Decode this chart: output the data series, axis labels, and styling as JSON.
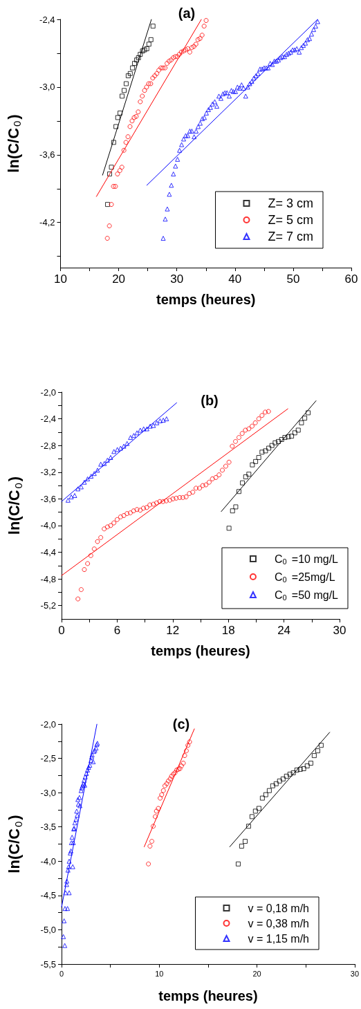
{
  "chart_data": [
    {
      "type": "scatter",
      "title": "(a)",
      "xlabel": "temps (heures)",
      "ylabel": "ln(C/C$_{0}$)",
      "legend": "bottom right",
      "xlim": [
        10,
        60
      ],
      "xticks": [
        10,
        {
          "value": 15,
          "label": null
        },
        20,
        {
          "value": 25,
          "label": null
        },
        30,
        {
          "value": 35,
          "label": null
        },
        40,
        {
          "value": 45,
          "label": null
        },
        50,
        {
          "value": 55,
          "label": null
        },
        60
      ],
      "ylim": [
        -4.6,
        -2.4
      ],
      "yticks": [
        {
          "value": -2.4,
          "label": "-2,4"
        },
        {
          "value": -2.7,
          "label": null
        },
        {
          "value": -3.0,
          "label": "-3,0"
        },
        {
          "value": -3.3,
          "label": null
        },
        {
          "value": -3.6,
          "label": "-3,6"
        },
        {
          "value": -3.9,
          "label": null
        },
        {
          "value": -4.2,
          "label": "-4,2"
        },
        {
          "value": -4.5,
          "label": null
        }
      ],
      "series": [
        {
          "name": "Z= 3 cm",
          "color": "#000000",
          "marker": "square",
          "x": [
            18.09,
            18.44,
            18.75,
            19.14,
            19.53,
            19.84,
            20.23,
            20.59,
            20.94,
            21.29,
            21.64,
            21.99,
            22.38,
            22.73,
            23.09,
            23.4,
            23.71,
            24.1,
            24.45,
            24.84,
            25.2,
            25.55,
            25.9
          ],
          "values": [
            -4.04,
            -3.77,
            -3.71,
            -3.49,
            -3.35,
            -3.27,
            -3.23,
            -3.08,
            -3.03,
            -2.97,
            -2.9,
            -2.88,
            -2.83,
            -2.79,
            -2.76,
            -2.74,
            -2.71,
            -2.68,
            -2.67,
            -2.66,
            -2.62,
            -2.58,
            -2.46
          ]
        },
        {
          "name": "Z= 5 cm",
          "color": "#ff0000",
          "marker": "circle",
          "x": [
            18.05,
            18.4,
            18.75,
            19.1,
            19.45,
            19.8,
            20.2,
            20.55,
            20.9,
            21.25,
            21.6,
            21.95,
            22.3,
            22.66,
            23.01,
            23.36,
            23.71,
            24.06,
            24.45,
            24.8,
            25.16,
            25.51,
            25.86,
            26.21,
            26.56,
            26.91,
            27.27,
            27.62,
            27.97,
            28.32,
            28.67,
            29.02,
            29.38,
            29.73,
            30.08,
            30.43,
            30.78,
            31.17,
            31.52,
            31.88,
            32.23,
            32.58,
            32.93,
            33.28,
            33.63,
            33.98,
            34.34,
            34.69,
            35.04
          ],
          "values": [
            -4.34,
            -4.23,
            -4.04,
            -3.88,
            -3.88,
            -3.77,
            -3.74,
            -3.71,
            -3.56,
            -3.49,
            -3.44,
            -3.35,
            -3.3,
            -3.27,
            -3.26,
            -3.22,
            -3.13,
            -3.08,
            -3.03,
            -3.0,
            -2.97,
            -2.97,
            -2.92,
            -2.9,
            -2.88,
            -2.85,
            -2.83,
            -2.83,
            -2.83,
            -2.79,
            -2.77,
            -2.76,
            -2.74,
            -2.73,
            -2.73,
            -2.71,
            -2.69,
            -2.68,
            -2.67,
            -2.66,
            -2.69,
            -2.65,
            -2.64,
            -2.62,
            -2.58,
            -2.57,
            -2.54,
            -2.46,
            -2.41
          ]
        },
        {
          "name": "Z= 7 cm",
          "color": "#0000ff",
          "marker": "triangle",
          "x": [
            27.66,
            28.01,
            28.36,
            28.71,
            29.06,
            29.41,
            29.77,
            30.12,
            30.47,
            30.82,
            31.17,
            31.52,
            31.88,
            32.23,
            32.58,
            32.97,
            33.32,
            33.67,
            34.02,
            34.38,
            34.73,
            35.08,
            35.43,
            35.78,
            36.13,
            36.52,
            36.88,
            37.23,
            37.58,
            37.93,
            38.28,
            38.63,
            39.02,
            39.38,
            39.73,
            40.08,
            40.43,
            40.78,
            41.13,
            41.48,
            41.84,
            42.19,
            42.54,
            42.89,
            43.24,
            43.59,
            43.95,
            44.3,
            44.65,
            45.0,
            45.35,
            45.7,
            46.05,
            46.41,
            46.76,
            47.11,
            47.46,
            47.81,
            48.16,
            48.52,
            48.87,
            49.22,
            49.57,
            49.92,
            50.27,
            50.63,
            51.05,
            51.41,
            51.76,
            52.11,
            52.46,
            52.81,
            53.16,
            53.52,
            53.87,
            54.22
          ],
          "values": [
            -4.34,
            -4.17,
            -4.08,
            -3.95,
            -3.87,
            -3.77,
            -3.7,
            -3.64,
            -3.56,
            -3.51,
            -3.46,
            -3.43,
            -3.43,
            -3.39,
            -3.39,
            -3.44,
            -3.39,
            -3.35,
            -3.32,
            -3.28,
            -3.27,
            -3.23,
            -3.2,
            -3.18,
            -3.15,
            -3.13,
            -3.17,
            -3.08,
            -3.1,
            -3.06,
            -3.05,
            -3.05,
            -3.08,
            -3.03,
            -3.04,
            -3.04,
            -3.0,
            -3.01,
            -2.98,
            -3.01,
            -3.08,
            -3.0,
            -2.97,
            -2.95,
            -2.92,
            -2.9,
            -2.88,
            -2.84,
            -2.84,
            -2.83,
            -2.83,
            -2.83,
            -2.79,
            -2.8,
            -2.77,
            -2.77,
            -2.76,
            -2.74,
            -2.73,
            -2.73,
            -2.71,
            -2.7,
            -2.69,
            -2.67,
            -2.67,
            -2.66,
            -2.69,
            -2.65,
            -2.63,
            -2.61,
            -2.58,
            -2.57,
            -2.53,
            -2.49,
            -2.46,
            -2.42
          ]
        },
        {
          "type": "line",
          "color": "#000000",
          "marker": "none",
          "x": [
            17.23,
            25.63
          ],
          "values": [
            -3.78,
            -2.4
          ]
        },
        {
          "type": "line",
          "color": "#ff0000",
          "marker": "none",
          "x": [
            16.17,
            34.22
          ],
          "values": [
            -3.97,
            -2.4
          ]
        },
        {
          "type": "line",
          "color": "#0000ff",
          "marker": "none",
          "x": [
            24.84,
            54.22
          ],
          "values": [
            -3.87,
            -2.4
          ]
        }
      ]
    },
    {
      "type": "scatter",
      "title": "(b)",
      "xlabel": "temps (heures)",
      "ylabel": "ln(C/C$_{0}$)",
      "legend": "bottom right",
      "xlim": [
        0,
        30
      ],
      "xticks": [
        0,
        {
          "value": 3,
          "label": null
        },
        6,
        {
          "value": 9,
          "label": null
        },
        12,
        {
          "value": 15,
          "label": null
        },
        18,
        {
          "value": 21,
          "label": null
        },
        24,
        {
          "value": 27,
          "label": null
        },
        30
      ],
      "ylim": [
        -5.4,
        -2.0
      ],
      "yticks": [
        {
          "value": -2.0,
          "label": "-2,0"
        },
        {
          "value": -2.2,
          "label": null
        },
        {
          "value": -2.4,
          "label": "-2,4"
        },
        {
          "value": -2.6,
          "label": null
        },
        {
          "value": -2.8,
          "label": "-2,8"
        },
        {
          "value": -3.0,
          "label": null
        },
        {
          "value": -3.2,
          "label": "-3,2"
        },
        {
          "value": -3.4,
          "label": null
        },
        {
          "value": -3.6,
          "label": "-3,6"
        },
        {
          "value": -3.8,
          "label": null
        },
        {
          "value": -4.0,
          "label": "-4,0"
        },
        {
          "value": -4.2,
          "label": null
        },
        {
          "value": -4.4,
          "label": "-4,4"
        },
        {
          "value": -4.6,
          "label": null
        },
        {
          "value": -4.8,
          "label": "-4,8"
        },
        {
          "value": -5.0,
          "label": null
        },
        {
          "value": -5.2,
          "label": "-5,2"
        }
      ],
      "series": [
        {
          "name": "C$_{0}$ =10 mg/L",
          "color": "#000000",
          "marker": "square",
          "x": [
            18.07,
            18.45,
            18.8,
            19.14,
            19.52,
            19.87,
            20.21,
            20.59,
            20.94,
            21.28,
            21.63,
            22.01,
            22.36,
            22.7,
            23.05,
            23.4,
            23.75,
            24.1,
            24.47,
            24.82,
            25.17,
            25.54,
            25.89,
            26.24,
            26.61
          ],
          "values": [
            -4.04,
            -3.78,
            -3.72,
            -3.49,
            -3.36,
            -3.27,
            -3.23,
            -3.09,
            -3.04,
            -2.98,
            -2.9,
            -2.88,
            -2.84,
            -2.8,
            -2.76,
            -2.74,
            -2.71,
            -2.68,
            -2.67,
            -2.66,
            -2.61,
            -2.57,
            -2.46,
            -2.39,
            -2.31
          ]
        },
        {
          "name": "C$_{0}$ =25mg/L",
          "color": "#ff0000",
          "marker": "circle",
          "x": [
            1.77,
            2.12,
            2.46,
            2.81,
            3.16,
            3.53,
            3.88,
            4.23,
            4.6,
            4.95,
            5.3,
            5.65,
            6.0,
            6.37,
            6.72,
            7.07,
            7.42,
            7.77,
            8.14,
            8.49,
            8.84,
            9.19,
            9.53,
            9.91,
            10.26,
            10.6,
            10.95,
            11.3,
            11.68,
            12.02,
            12.37,
            12.75,
            13.09,
            13.44,
            13.79,
            14.16,
            14.51,
            14.89,
            15.24,
            15.58,
            15.93,
            16.28,
            16.65,
            17.0,
            17.35,
            17.72,
            18.07,
            18.42,
            18.77,
            19.14,
            19.49,
            19.84,
            20.21,
            20.56,
            20.91,
            21.28,
            21.63,
            21.98,
            22.33
          ],
          "values": [
            -5.1,
            -4.96,
            -4.66,
            -4.57,
            -4.45,
            -4.35,
            -4.24,
            -4.18,
            -4.05,
            -4.02,
            -4.0,
            -3.96,
            -3.91,
            -3.87,
            -3.85,
            -3.82,
            -3.81,
            -3.78,
            -3.76,
            -3.77,
            -3.74,
            -3.73,
            -3.69,
            -3.68,
            -3.66,
            -3.64,
            -3.64,
            -3.63,
            -3.62,
            -3.6,
            -3.59,
            -3.58,
            -3.58,
            -3.57,
            -3.52,
            -3.5,
            -3.44,
            -3.44,
            -3.4,
            -3.39,
            -3.35,
            -3.3,
            -3.28,
            -3.24,
            -3.17,
            -3.11,
            -3.05,
            -2.81,
            -2.74,
            -2.68,
            -2.62,
            -2.57,
            -2.55,
            -2.51,
            -2.46,
            -2.4,
            -2.35,
            -2.3,
            -2.29
          ]
        },
        {
          "name": "C$_{0}$ =50 mg/L",
          "color": "#0000ff",
          "marker": "triangle",
          "x": [
            0.7,
            1.05,
            1.42,
            1.77,
            2.12,
            2.46,
            2.81,
            3.19,
            3.53,
            3.88,
            4.23,
            4.61,
            4.95,
            5.3,
            5.65,
            6.02,
            6.37,
            6.72,
            7.07,
            7.44,
            7.79,
            8.14,
            8.49,
            8.86,
            9.21,
            9.56,
            9.91,
            10.28,
            10.63,
            10.98,
            11.33
          ],
          "values": [
            -3.62,
            -3.57,
            -3.55,
            -3.45,
            -3.42,
            -3.35,
            -3.3,
            -3.26,
            -3.22,
            -3.17,
            -3.08,
            -3.07,
            -3.02,
            -2.98,
            -2.89,
            -2.86,
            -2.84,
            -2.81,
            -2.77,
            -2.68,
            -2.65,
            -2.61,
            -2.57,
            -2.55,
            -2.55,
            -2.51,
            -2.5,
            -2.46,
            -2.43,
            -2.42,
            -2.4
          ]
        },
        {
          "type": "line",
          "color": "#000000",
          "marker": "none",
          "x": [
            17.23,
            27.46
          ],
          "values": [
            -3.79,
            -2.13
          ]
        },
        {
          "type": "line",
          "color": "#ff0000",
          "marker": "none",
          "x": [
            0,
            24.42
          ],
          "values": [
            -4.75,
            -2.25
          ]
        },
        {
          "type": "line",
          "color": "#0000ff",
          "marker": "none",
          "x": [
            0,
            12.42
          ],
          "values": [
            -3.64,
            -2.16
          ]
        }
      ]
    },
    {
      "type": "scatter",
      "title": "(c)",
      "xlabel": "temps (heures)",
      "ylabel": "ln(C/C$_{0}$)",
      "legend": "bottom right",
      "xlim": [
        0,
        30
      ],
      "xticks": [
        0,
        {
          "value": 5,
          "label": null
        },
        10,
        {
          "value": 15,
          "label": null
        },
        20,
        {
          "value": 25,
          "label": null
        },
        30
      ],
      "ylim": [
        -5.5,
        -2.0
      ],
      "yticks": [
        {
          "value": -2.0,
          "label": "-2,0"
        },
        {
          "value": -2.25,
          "label": null
        },
        {
          "value": -2.5,
          "label": "-2,5"
        },
        {
          "value": -2.75,
          "label": null
        },
        {
          "value": -3.0,
          "label": "-3,0"
        },
        {
          "value": -3.25,
          "label": null
        },
        {
          "value": -3.5,
          "label": "-3,5"
        },
        {
          "value": -3.75,
          "label": null
        },
        {
          "value": -4.0,
          "label": "-4,0"
        },
        {
          "value": -4.25,
          "label": null
        },
        {
          "value": -4.5,
          "label": "-4,5"
        },
        {
          "value": -4.75,
          "label": null
        },
        {
          "value": -5.0,
          "label": "-5,0"
        },
        {
          "value": -5.25,
          "label": null
        },
        {
          "value": -5.5,
          "label": "-5,5"
        }
      ],
      "series": [
        {
          "name": "v = 0,18 m/h",
          "color": "#000000",
          "marker": "square",
          "x": [
            18.08,
            18.43,
            18.79,
            19.14,
            19.49,
            19.84,
            20.2,
            20.55,
            20.9,
            21.26,
            21.61,
            21.96,
            22.31,
            22.67,
            23.02,
            23.37,
            23.72,
            24.08,
            24.43,
            24.78,
            25.14,
            25.51,
            25.86,
            26.22,
            26.57
          ],
          "values": [
            -4.04,
            -3.78,
            -3.71,
            -3.49,
            -3.35,
            -3.27,
            -3.23,
            -3.08,
            -3.03,
            -2.97,
            -2.9,
            -2.87,
            -2.83,
            -2.8,
            -2.76,
            -2.73,
            -2.71,
            -2.67,
            -2.66,
            -2.65,
            -2.61,
            -2.57,
            -2.46,
            -2.39,
            -2.31
          ]
        },
        {
          "name": "v = 0,38 m/h",
          "color": "#ff0000",
          "marker": "circle",
          "x": [
            8.89,
            9.05,
            9.24,
            9.38,
            9.59,
            9.71,
            9.9,
            10.09,
            10.25,
            10.42,
            10.58,
            10.77,
            10.93,
            11.12,
            11.26,
            11.45,
            11.61,
            11.78,
            11.94,
            12.11,
            12.27,
            12.46,
            12.6,
            12.77,
            12.93,
            13.1
          ],
          "values": [
            -4.04,
            -3.78,
            -3.71,
            -3.49,
            -3.35,
            -3.27,
            -3.23,
            -3.08,
            -3.03,
            -2.97,
            -2.9,
            -2.87,
            -2.83,
            -2.8,
            -2.76,
            -2.73,
            -2.71,
            -2.67,
            -2.66,
            -2.65,
            -2.61,
            -2.57,
            -2.46,
            -2.39,
            -2.31,
            -2.26
          ]
        },
        {
          "name": "v = 1,15 m/h",
          "color": "#0000ff",
          "marker": "triangle",
          "x": [
            0.19,
            0.33,
            0.26,
            0.35,
            0.61,
            0.42,
            0.78,
            0.52,
            0.54,
            0.66,
            0.73,
            0.78,
            0.89,
            0.96,
            1.15,
            1.01,
            1.08,
            1.2,
            1.25,
            1.36,
            1.29,
            1.48,
            1.6,
            1.55,
            1.72,
            1.67,
            1.83,
            1.88,
            2.0,
            2.07,
            2.14,
            2.23,
            2.3,
            2.37,
            2.42,
            2.54,
            2.66,
            2.77,
            2.89,
            3.01,
            3.08,
            3.13,
            3.24,
            3.32,
            3.41,
            3.53,
            3.6,
            3.67
          ],
          "values": [
            -5.1,
            -5.23,
            -4.87,
            -4.69,
            -4.69,
            -4.46,
            -4.46,
            -4.34,
            -4.29,
            -4.13,
            -4.08,
            -4.0,
            -3.88,
            -3.85,
            -4.08,
            -3.73,
            -3.65,
            -3.73,
            -3.53,
            -3.44,
            -3.52,
            -3.39,
            -3.33,
            -3.27,
            -3.17,
            -3.1,
            -3.07,
            -3.19,
            -2.97,
            -2.93,
            -2.9,
            -2.87,
            -2.82,
            -2.89,
            -2.77,
            -2.72,
            -2.67,
            -2.63,
            -2.6,
            -2.53,
            -2.48,
            -2.45,
            -2.55,
            -2.4,
            -2.38,
            -2.35,
            -2.3,
            -2.28
          ]
        },
        {
          "type": "line",
          "color": "#000000",
          "marker": "none",
          "x": [
            17.21,
            27.44
          ],
          "values": [
            -3.79,
            -2.12
          ]
        },
        {
          "type": "line",
          "color": "#ff0000",
          "marker": "none",
          "x": [
            8.46,
            13.59
          ],
          "values": [
            -3.79,
            -2.07
          ]
        },
        {
          "type": "line",
          "color": "#0000ff",
          "marker": "none",
          "x": [
            0,
            3.62
          ],
          "values": [
            -4.67,
            -2.0
          ]
        }
      ]
    }
  ]
}
